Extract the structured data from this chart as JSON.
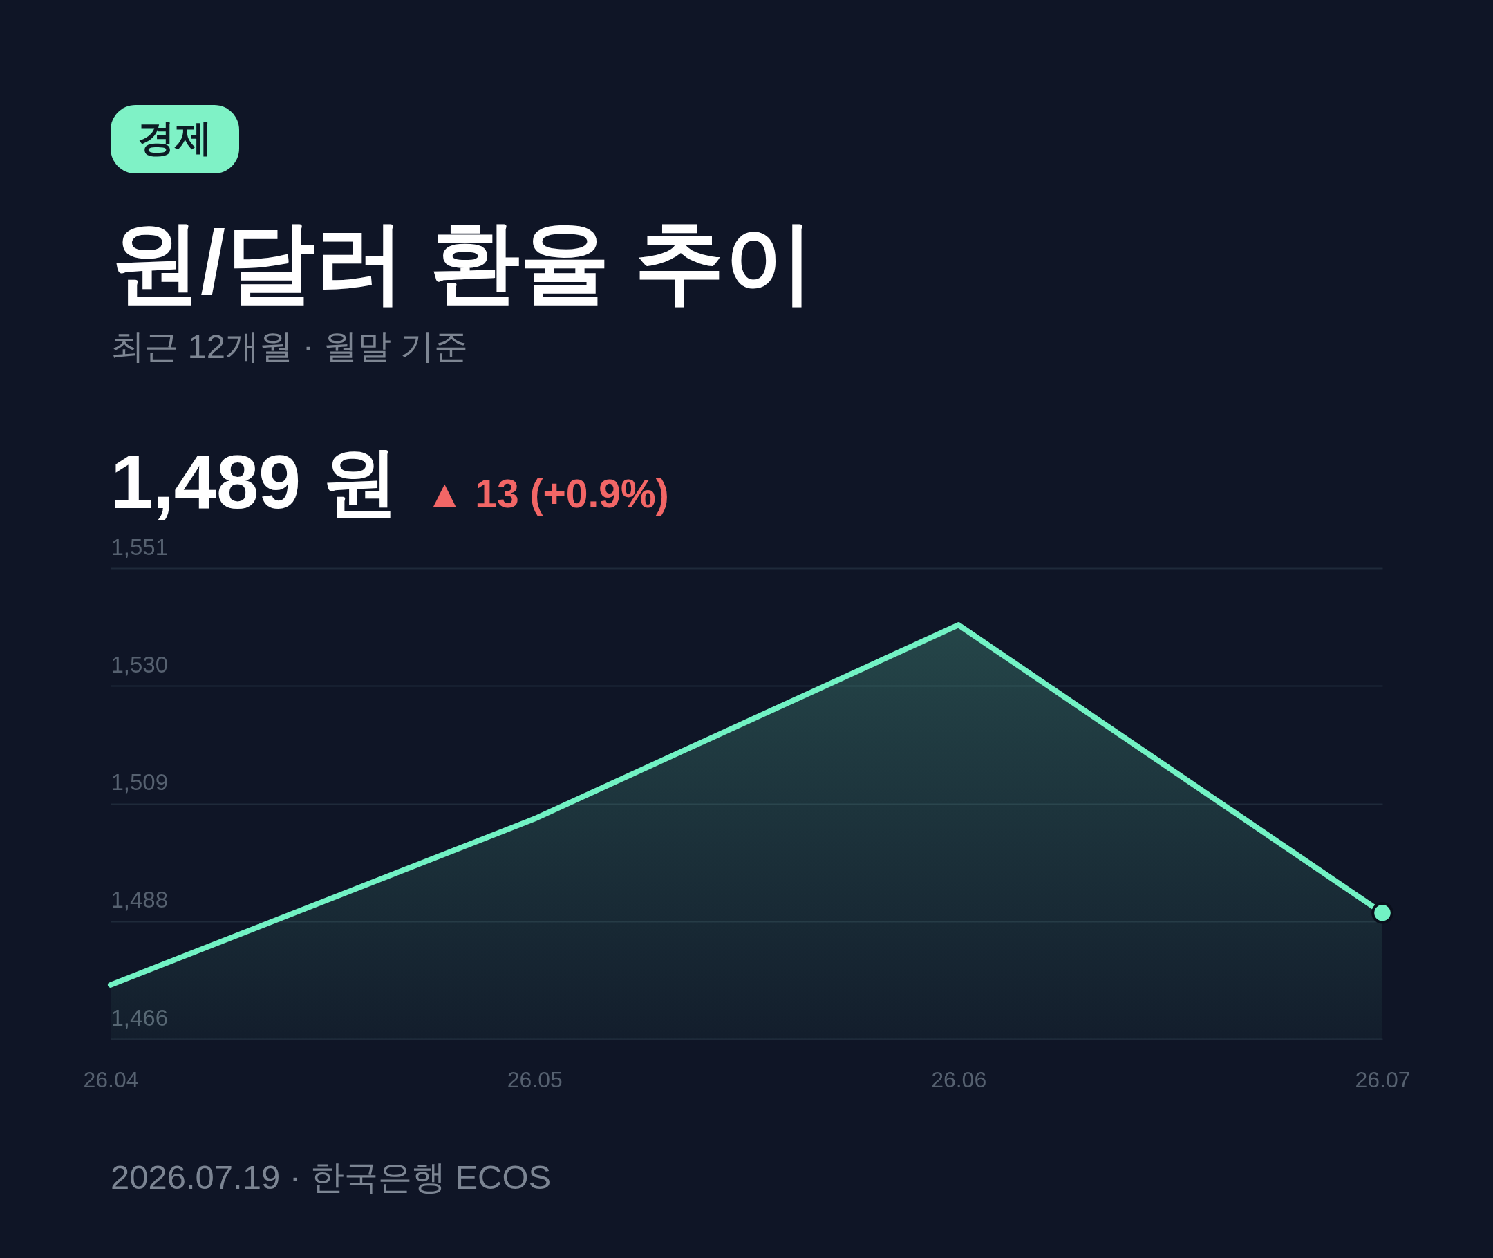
{
  "chart_data": {
    "type": "area",
    "title": "원/달러 환율 추이",
    "subtitle": "최근 12개월 · 월말 기준",
    "categories": [
      "26.04",
      "26.05",
      "26.06",
      "26.07"
    ],
    "series": [
      {
        "color": "#72f2c4",
        "values": [
          1476,
          1506,
          1541,
          1489
        ]
      },
      {
        "type": "scatter",
        "color": "#72f2c4",
        "marker": "circle",
        "values": [
          null,
          null,
          null,
          1489
        ]
      }
    ],
    "ylim": [
      1466.25,
      1551.25
    ],
    "yticks": [
      {
        "value": 1466.25,
        "label": "1,466"
      },
      {
        "value": 1487.5,
        "label": "1,488"
      },
      {
        "value": 1508.75,
        "label": "1,509"
      },
      {
        "value": 1530,
        "label": "1,530"
      },
      {
        "value": 1551.25,
        "label": "1,551"
      }
    ],
    "grid": "y",
    "annotations": [
      "경제",
      "1,489 원",
      "▲ 13 (+0.9%)",
      "2026.07.19 · 한국은행 ECOS"
    ]
  }
}
